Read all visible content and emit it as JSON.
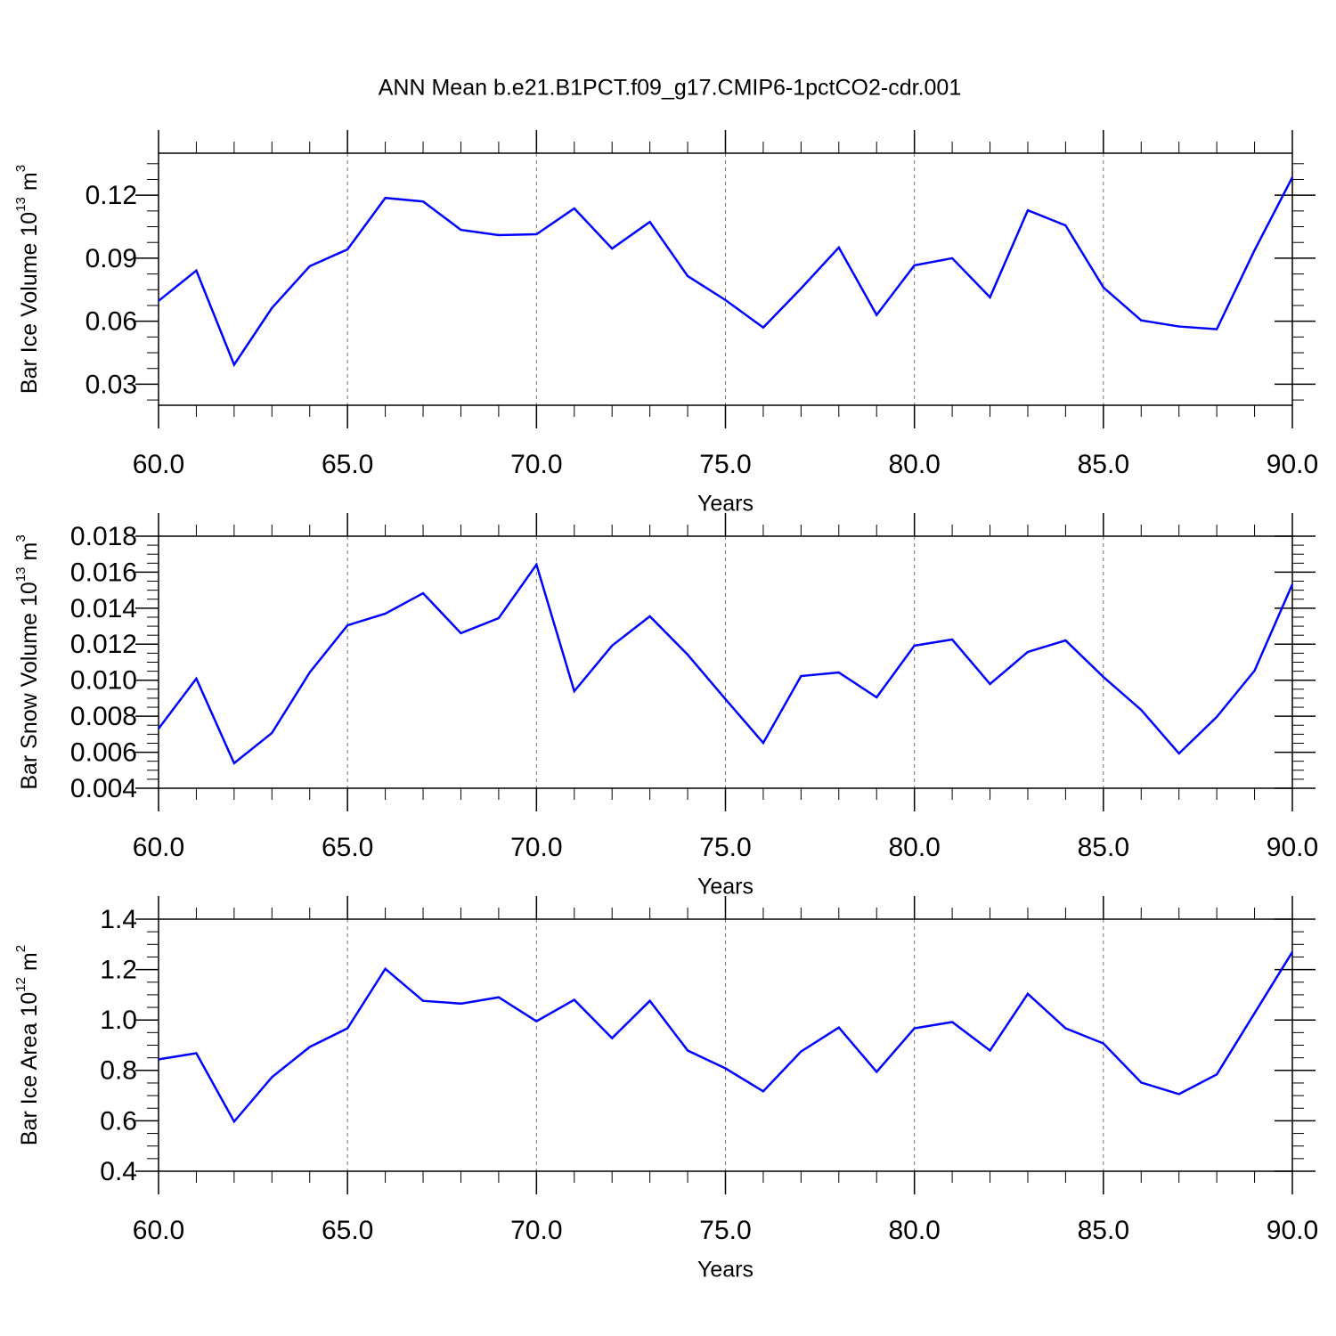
{
  "title": "ANN Mean b.e21.B1PCT.f09_g17.CMIP6-1pctCO2-cdr.001",
  "chart_data": [
    {
      "type": "line",
      "ylabel": {
        "text": "Bar Ice Volume 10",
        "exp": "13",
        "unit": "m",
        "unit_exp": "3"
      },
      "xlabel": "Years",
      "x": [
        60,
        61,
        62,
        63,
        64,
        65,
        66,
        67,
        68,
        69,
        70,
        71,
        72,
        73,
        74,
        75,
        76,
        77,
        78,
        79,
        80,
        81,
        82,
        83,
        84,
        85,
        86,
        87,
        88,
        89,
        90
      ],
      "series": [
        {
          "color": "#0000ff",
          "values": [
            0.0697,
            0.0841,
            0.0393,
            0.0663,
            0.0862,
            0.0942,
            0.1187,
            0.117,
            0.1035,
            0.101,
            0.1014,
            0.1137,
            0.0946,
            0.1073,
            0.0815,
            0.0701,
            0.057,
            0.0756,
            0.0951,
            0.063,
            0.0866,
            0.09,
            0.0714,
            0.1128,
            0.1056,
            0.0761,
            0.0604,
            0.0575,
            0.0562,
            0.0938,
            0.1285
          ]
        }
      ],
      "xlim": [
        60,
        90
      ],
      "xticks": [
        {
          "value": 60,
          "label": "60.0"
        },
        {
          "value": 65,
          "label": "65.0"
        },
        {
          "value": 70,
          "label": "70.0"
        },
        {
          "value": 75,
          "label": "75.0"
        },
        {
          "value": 80,
          "label": "80.0"
        },
        {
          "value": 85,
          "label": "85.0"
        },
        {
          "value": 90,
          "label": "90.0"
        }
      ],
      "ylim": [
        0.02,
        0.14
      ],
      "yticks": [
        0.03,
        0.06,
        0.09,
        0.12
      ],
      "xgrid": true
    },
    {
      "type": "line",
      "ylabel": {
        "text": "Bar Snow Volume 10",
        "exp": "13",
        "unit": "m",
        "unit_exp": "3"
      },
      "xlabel": "Years",
      "x": [
        60,
        61,
        62,
        63,
        64,
        65,
        66,
        67,
        68,
        69,
        70,
        71,
        72,
        73,
        74,
        75,
        76,
        77,
        78,
        79,
        80,
        81,
        82,
        83,
        84,
        85,
        86,
        87,
        88,
        89,
        90
      ],
      "series": [
        {
          "color": "#0000ff",
          "values": [
            0.00731,
            0.01009,
            0.00539,
            0.00707,
            0.01043,
            0.01305,
            0.0137,
            0.01483,
            0.01261,
            0.01345,
            0.01642,
            0.00939,
            0.01192,
            0.01355,
            0.01142,
            0.00895,
            0.00652,
            0.01023,
            0.01043,
            0.00905,
            0.01192,
            0.01226,
            0.00979,
            0.01157,
            0.01221,
            0.01018,
            0.00835,
            0.00593,
            0.00796,
            0.01053,
            0.01533
          ]
        }
      ],
      "xlim": [
        60,
        90
      ],
      "xticks": [
        {
          "value": 60,
          "label": "60.0"
        },
        {
          "value": 65,
          "label": "65.0"
        },
        {
          "value": 70,
          "label": "70.0"
        },
        {
          "value": 75,
          "label": "75.0"
        },
        {
          "value": 80,
          "label": "80.0"
        },
        {
          "value": 85,
          "label": "85.0"
        },
        {
          "value": 90,
          "label": "90.0"
        }
      ],
      "ylim": [
        0.004,
        0.018
      ],
      "yticks": [
        0.004,
        0.006,
        0.008,
        {
          "value": 0.01,
          "label": "0.010"
        },
        0.012,
        0.014,
        0.016,
        0.018
      ],
      "xgrid": true
    },
    {
      "type": "line",
      "ylabel": {
        "text": "Bar Ice Area 10",
        "exp": "12",
        "unit": "m",
        "unit_exp": "2"
      },
      "xlabel": "Years",
      "x": [
        60,
        61,
        62,
        63,
        64,
        65,
        66,
        67,
        68,
        69,
        70,
        71,
        72,
        73,
        74,
        75,
        76,
        77,
        78,
        79,
        80,
        81,
        82,
        83,
        84,
        85,
        86,
        87,
        88,
        89,
        90
      ],
      "series": [
        {
          "color": "#0000ff",
          "values": [
            0.844,
            0.868,
            0.597,
            0.773,
            0.893,
            0.967,
            1.203,
            1.076,
            1.065,
            1.09,
            0.995,
            1.08,
            0.928,
            1.076,
            0.879,
            0.808,
            0.717,
            0.875,
            0.97,
            0.794,
            0.967,
            0.992,
            0.879,
            1.104,
            0.967,
            0.907,
            0.752,
            0.706,
            0.784,
            1.027,
            1.27
          ]
        }
      ],
      "xlim": [
        60,
        90
      ],
      "xticks": [
        {
          "value": 60,
          "label": "60.0"
        },
        {
          "value": 65,
          "label": "65.0"
        },
        {
          "value": 70,
          "label": "70.0"
        },
        {
          "value": 75,
          "label": "75.0"
        },
        {
          "value": 80,
          "label": "80.0"
        },
        {
          "value": 85,
          "label": "85.0"
        },
        {
          "value": 90,
          "label": "90.0"
        }
      ],
      "ylim": [
        0.4,
        1.4
      ],
      "yticks": [
        0.4,
        0.6,
        0.8,
        {
          "value": 1,
          "label": "1.0"
        },
        1.2,
        1.4
      ],
      "xgrid": true
    }
  ]
}
